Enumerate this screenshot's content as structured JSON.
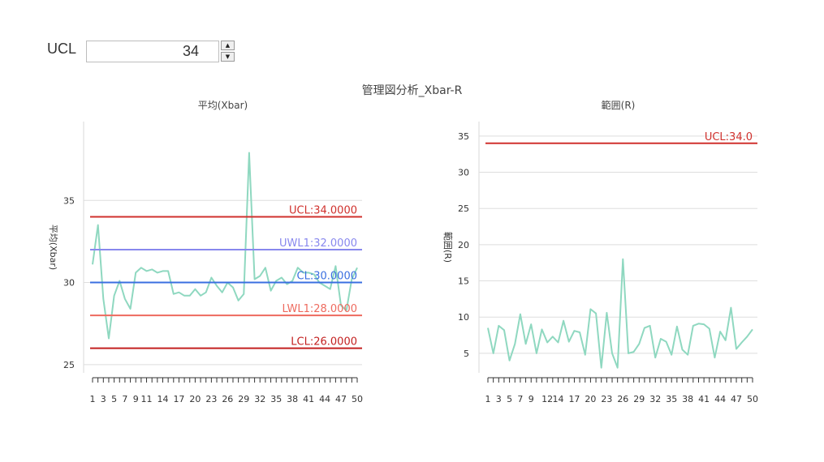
{
  "controls": {
    "ucl_label": "UCL",
    "ucl_value": "34"
  },
  "main_title": "管理図分析_Xbar-R",
  "chart_data": [
    {
      "type": "line",
      "title": "平均(Xbar)",
      "ylabel": "平均(Xbar)",
      "ylim": [
        24.5,
        39.8
      ],
      "yticks": [
        25,
        30,
        35
      ],
      "x": [
        1,
        2,
        3,
        4,
        5,
        6,
        7,
        8,
        9,
        10,
        11,
        12,
        13,
        14,
        15,
        16,
        17,
        18,
        19,
        20,
        21,
        22,
        23,
        24,
        25,
        26,
        27,
        28,
        29,
        30,
        31,
        32,
        33,
        34,
        35,
        36,
        37,
        38,
        39,
        40,
        41,
        42,
        43,
        44,
        45,
        46,
        47,
        48,
        49,
        50
      ],
      "xtick_labels": [
        1,
        3,
        5,
        7,
        9,
        11,
        14,
        17,
        20,
        23,
        26,
        29,
        32,
        35,
        38,
        41,
        44,
        47,
        50
      ],
      "series": [
        {
          "values": [
            31.1,
            33.5,
            29.0,
            26.6,
            29.2,
            30.1,
            29.0,
            28.4,
            30.6,
            30.9,
            30.7,
            30.8,
            30.6,
            30.7,
            30.7,
            29.3,
            29.4,
            29.2,
            29.2,
            29.6,
            29.2,
            29.4,
            30.3,
            29.8,
            29.4,
            30.0,
            29.7,
            28.9,
            29.3,
            37.9,
            30.2,
            30.4,
            30.9,
            29.5,
            30.1,
            30.3,
            29.9,
            30.1,
            30.9,
            30.6,
            30.6,
            30.5,
            30.0,
            29.8,
            29.6,
            31.0,
            28.6,
            28.3,
            30.2,
            30.9
          ],
          "color": "#8fd8c0"
        }
      ],
      "control_lines": [
        {
          "label": "UCL:34.0000",
          "value": 34,
          "color": "#d0312d"
        },
        {
          "label": "UWL1:32.0000",
          "value": 32,
          "color": "#8888ee"
        },
        {
          "label": "CL:30.0000",
          "value": 30,
          "color": "#3a6fe0"
        },
        {
          "label": "LWL1:28.0000",
          "value": 28,
          "color": "#ee6a5e"
        },
        {
          "label": "LCL:26.0000",
          "value": 26,
          "color": "#c32020"
        }
      ]
    },
    {
      "type": "line",
      "title": "範囲(R)",
      "ylabel": "範囲(R)",
      "ylim": [
        2.3,
        37
      ],
      "yticks": [
        5,
        10,
        15,
        20,
        25,
        30,
        35
      ],
      "x": [
        1,
        2,
        3,
        4,
        5,
        6,
        7,
        8,
        9,
        10,
        11,
        12,
        13,
        14,
        15,
        16,
        17,
        18,
        19,
        20,
        21,
        22,
        23,
        24,
        25,
        26,
        27,
        28,
        29,
        30,
        31,
        32,
        33,
        34,
        35,
        36,
        37,
        38,
        39,
        40,
        41,
        42,
        43,
        44,
        45,
        46,
        47,
        48,
        49,
        50
      ],
      "xtick_labels": [
        1,
        3,
        5,
        7,
        9,
        12,
        14,
        17,
        20,
        23,
        26,
        29,
        32,
        35,
        38,
        41,
        44,
        47,
        50
      ],
      "series": [
        {
          "values": [
            8.5,
            5.0,
            8.8,
            8.2,
            4.0,
            6.3,
            10.4,
            6.3,
            9.0,
            5.0,
            8.3,
            6.5,
            7.3,
            6.5,
            9.5,
            6.6,
            8.1,
            7.9,
            4.8,
            11.1,
            10.5,
            3.0,
            10.6,
            5.0,
            3.0,
            18.0,
            5.0,
            5.2,
            6.3,
            8.5,
            8.8,
            4.4,
            7.0,
            6.6,
            4.8,
            8.7,
            5.5,
            4.8,
            8.8,
            9.1,
            9.0,
            8.4,
            4.4,
            8.0,
            6.8,
            11.3,
            5.6,
            6.5,
            7.3,
            8.3
          ],
          "color": "#8fd8c0"
        }
      ],
      "control_lines": [
        {
          "label": "UCL:34.0",
          "value": 34,
          "color": "#d0312d"
        }
      ]
    }
  ]
}
